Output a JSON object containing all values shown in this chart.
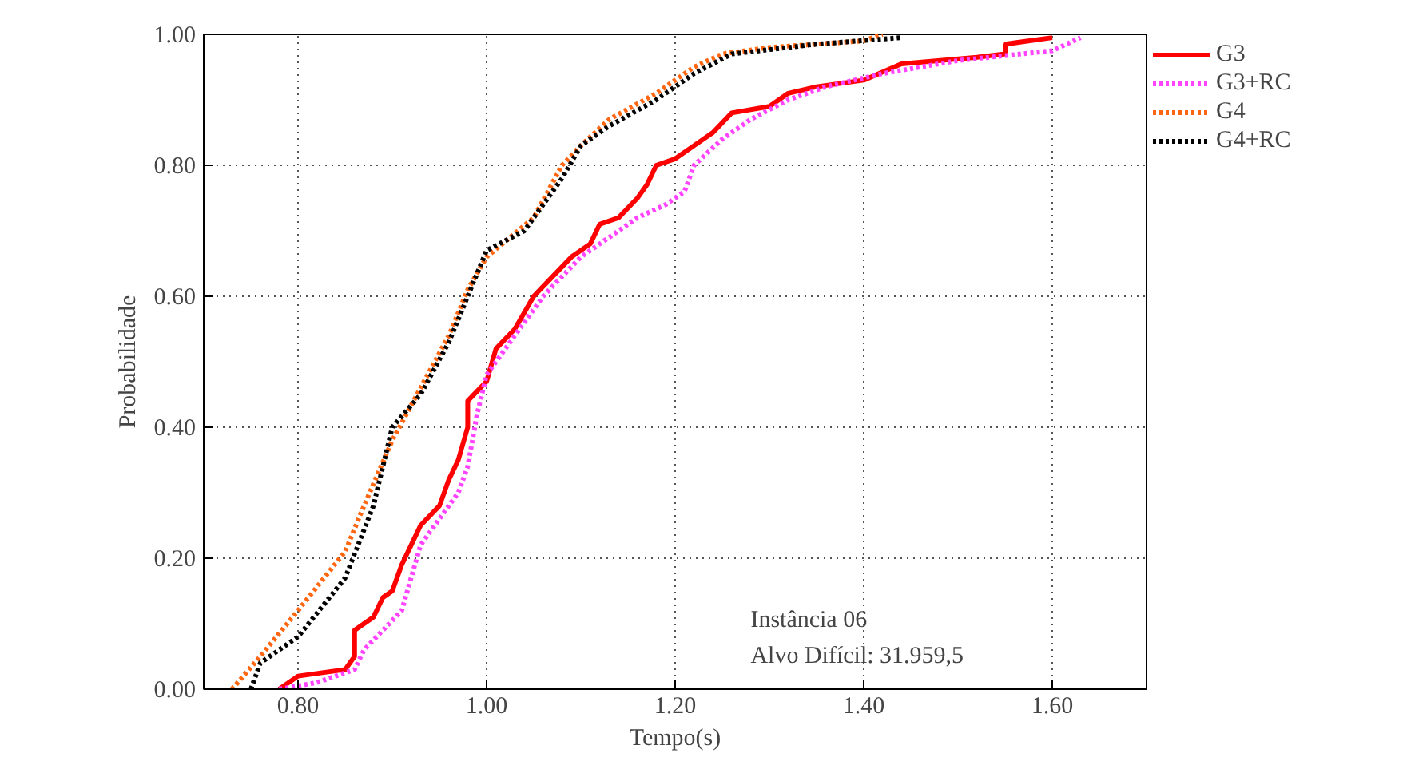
{
  "chart_data": {
    "type": "line",
    "xlabel": "Tempo(s)",
    "ylabel": "Probabilidade",
    "xlim": [
      0.7,
      1.7
    ],
    "ylim": [
      0,
      1
    ],
    "xticks": [
      {
        "value": 0.8,
        "label": "0.80"
      },
      {
        "value": 1.0,
        "label": "1.00"
      },
      {
        "value": 1.2,
        "label": "1.20"
      },
      {
        "value": 1.4,
        "label": "1.40"
      },
      {
        "value": 1.6,
        "label": "1.60"
      }
    ],
    "yticks": [
      {
        "value": 0,
        "label": "0.00"
      },
      {
        "value": 0.2,
        "label": "0.20"
      },
      {
        "value": 0.4,
        "label": "0.40"
      },
      {
        "value": 0.6,
        "label": "0.60"
      },
      {
        "value": 0.8,
        "label": "0.80"
      },
      {
        "value": 1.0,
        "label": "1.00"
      }
    ],
    "grid": true,
    "legend": "top right",
    "annotations": [
      "Instância 06",
      "Alvo Difícil: 31.959,5"
    ],
    "series": [
      {
        "name": "G3",
        "color": "#ff0000",
        "line_style": "solid",
        "x": [
          0.78,
          0.8,
          0.85,
          0.86,
          0.86,
          0.88,
          0.89,
          0.9,
          0.91,
          0.92,
          0.93,
          0.95,
          0.96,
          0.97,
          0.98,
          0.98,
          1.0,
          1.01,
          1.03,
          1.05,
          1.07,
          1.09,
          1.11,
          1.12,
          1.14,
          1.16,
          1.17,
          1.18,
          1.2,
          1.22,
          1.24,
          1.26,
          1.3,
          1.32,
          1.35,
          1.4,
          1.44,
          1.52,
          1.55,
          1.55,
          1.6
        ],
        "values": [
          0.0,
          0.02,
          0.03,
          0.05,
          0.09,
          0.11,
          0.14,
          0.15,
          0.19,
          0.22,
          0.25,
          0.28,
          0.32,
          0.35,
          0.4,
          0.44,
          0.47,
          0.52,
          0.55,
          0.6,
          0.63,
          0.66,
          0.68,
          0.71,
          0.72,
          0.75,
          0.77,
          0.8,
          0.81,
          0.83,
          0.85,
          0.88,
          0.89,
          0.91,
          0.92,
          0.93,
          0.955,
          0.965,
          0.97,
          0.985,
          0.995
        ]
      },
      {
        "name": "G3+RC",
        "color": "#ff44ff",
        "line_style": "dotted",
        "x": [
          0.78,
          0.82,
          0.86,
          0.87,
          0.89,
          0.91,
          0.92,
          0.93,
          0.95,
          0.97,
          0.98,
          0.99,
          1.0,
          1.02,
          1.04,
          1.06,
          1.08,
          1.1,
          1.13,
          1.16,
          1.19,
          1.21,
          1.22,
          1.25,
          1.28,
          1.32,
          1.36,
          1.42,
          1.5,
          1.6,
          1.63
        ],
        "values": [
          0.0,
          0.01,
          0.03,
          0.06,
          0.09,
          0.12,
          0.17,
          0.22,
          0.26,
          0.3,
          0.34,
          0.42,
          0.48,
          0.52,
          0.56,
          0.6,
          0.63,
          0.66,
          0.69,
          0.72,
          0.74,
          0.76,
          0.8,
          0.84,
          0.87,
          0.9,
          0.92,
          0.94,
          0.96,
          0.975,
          0.995
        ]
      },
      {
        "name": "G4",
        "color": "#ff6611",
        "line_style": "dotted",
        "x": [
          0.73,
          0.76,
          0.8,
          0.85,
          0.87,
          0.9,
          0.93,
          0.96,
          0.98,
          1.0,
          1.05,
          1.08,
          1.1,
          1.13,
          1.18,
          1.22,
          1.25,
          1.3,
          1.4,
          1.42
        ],
        "values": [
          0.0,
          0.05,
          0.12,
          0.21,
          0.28,
          0.38,
          0.46,
          0.54,
          0.61,
          0.66,
          0.72,
          0.8,
          0.83,
          0.87,
          0.91,
          0.95,
          0.97,
          0.98,
          0.99,
          1.0
        ]
      },
      {
        "name": "G4+RC",
        "color": "#000000",
        "line_style": "dotted",
        "x": [
          0.75,
          0.76,
          0.8,
          0.85,
          0.88,
          0.9,
          0.93,
          0.96,
          0.98,
          1.0,
          1.04,
          1.08,
          1.1,
          1.13,
          1.18,
          1.22,
          1.26,
          1.35,
          1.44
        ],
        "values": [
          0.0,
          0.04,
          0.08,
          0.17,
          0.28,
          0.4,
          0.45,
          0.53,
          0.6,
          0.67,
          0.7,
          0.78,
          0.83,
          0.86,
          0.9,
          0.94,
          0.97,
          0.985,
          0.995
        ]
      }
    ]
  }
}
